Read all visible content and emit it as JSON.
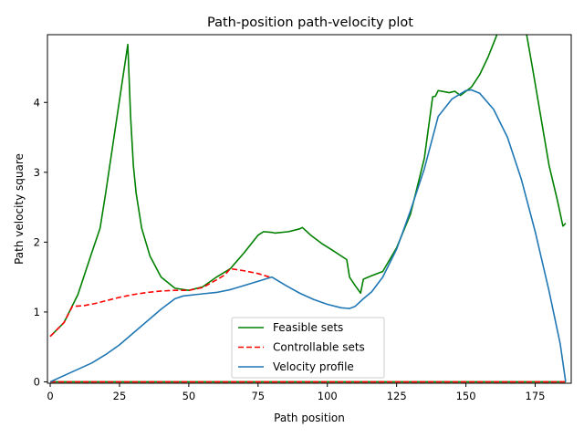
{
  "chart_data": {
    "type": "line",
    "title": "Path-position path-velocity plot",
    "xlabel": "Path position",
    "ylabel": "Path velocity square",
    "xlim": [
      -1,
      188
    ],
    "ylim": [
      -0.02,
      4.97
    ],
    "xticks": [
      0,
      25,
      50,
      75,
      100,
      125,
      150,
      175
    ],
    "xtick_labels": [
      "0",
      "25",
      "50",
      "75",
      "100",
      "125",
      "150",
      "175"
    ],
    "yticks": [
      0,
      1,
      2,
      3,
      4
    ],
    "ytick_labels": [
      "0",
      "1",
      "2",
      "3",
      "4"
    ],
    "grid": false,
    "legend_position": "bottom-center",
    "series": [
      {
        "name": "Feasible sets",
        "color": "#008000",
        "style": "solid",
        "points": [
          [
            0,
            0.65
          ],
          [
            5,
            0.85
          ],
          [
            10,
            1.25
          ],
          [
            15,
            1.85
          ],
          [
            18,
            2.2
          ],
          [
            20,
            2.7
          ],
          [
            23,
            3.5
          ],
          [
            26,
            4.3
          ],
          [
            28,
            4.83
          ],
          [
            29,
            3.8
          ],
          [
            30,
            3.1
          ],
          [
            31,
            2.7
          ],
          [
            33,
            2.2
          ],
          [
            36,
            1.8
          ],
          [
            40,
            1.5
          ],
          [
            45,
            1.34
          ],
          [
            50,
            1.31
          ],
          [
            55,
            1.36
          ],
          [
            60,
            1.5
          ],
          [
            65,
            1.62
          ],
          [
            70,
            1.85
          ],
          [
            75,
            2.1
          ],
          [
            77,
            2.15
          ],
          [
            80,
            2.14
          ],
          [
            81,
            2.13
          ],
          [
            86,
            2.15
          ],
          [
            90,
            2.19
          ],
          [
            91,
            2.21
          ],
          [
            94,
            2.1
          ],
          [
            98,
            1.98
          ],
          [
            102,
            1.88
          ],
          [
            107,
            1.75
          ],
          [
            108,
            1.5
          ],
          [
            110,
            1.38
          ],
          [
            112,
            1.27
          ],
          [
            113,
            1.47
          ],
          [
            116,
            1.52
          ],
          [
            120,
            1.58
          ],
          [
            125,
            1.92
          ],
          [
            130,
            2.4
          ],
          [
            135,
            3.2
          ],
          [
            138,
            4.08
          ],
          [
            139,
            4.09
          ],
          [
            140,
            4.17
          ],
          [
            144,
            4.14
          ],
          [
            146,
            4.16
          ],
          [
            148,
            4.1
          ],
          [
            152,
            4.22
          ],
          [
            155,
            4.4
          ],
          [
            158,
            4.65
          ],
          [
            161,
            4.95
          ],
          [
            163,
            5.3
          ],
          [
            170,
            5.3
          ],
          [
            172,
            4.95
          ],
          [
            174,
            4.5
          ],
          [
            177,
            3.8
          ],
          [
            180,
            3.1
          ],
          [
            183,
            2.6
          ],
          [
            185,
            2.23
          ],
          [
            186,
            2.27
          ]
        ]
      },
      {
        "name": "",
        "color": "#008000",
        "style": "solid",
        "points": [
          [
            0,
            0.0
          ],
          [
            186,
            0.0
          ]
        ]
      },
      {
        "name": "Controllable sets",
        "color": "#ff0000",
        "style": "dashed",
        "points": [
          [
            0,
            0.65
          ],
          [
            5,
            0.85
          ],
          [
            8,
            1.08
          ],
          [
            12,
            1.09
          ],
          [
            16,
            1.12
          ],
          [
            20,
            1.16
          ],
          [
            25,
            1.21
          ],
          [
            30,
            1.25
          ],
          [
            35,
            1.28
          ],
          [
            40,
            1.3
          ],
          [
            45,
            1.31
          ],
          [
            50,
            1.31
          ],
          [
            55,
            1.35
          ],
          [
            60,
            1.46
          ],
          [
            63,
            1.53
          ],
          [
            65,
            1.62
          ],
          [
            70,
            1.59
          ],
          [
            75,
            1.55
          ],
          [
            80,
            1.49
          ]
        ]
      },
      {
        "name": "",
        "color": "#ff0000",
        "style": "dashed",
        "points": [
          [
            0,
            0.0
          ],
          [
            186,
            0.0
          ]
        ]
      },
      {
        "name": "Velocity profile",
        "color": "#1f77b4",
        "style": "solid",
        "points": [
          [
            0,
            0.0
          ],
          [
            5,
            0.09
          ],
          [
            10,
            0.18
          ],
          [
            15,
            0.27
          ],
          [
            20,
            0.39
          ],
          [
            25,
            0.53
          ],
          [
            30,
            0.7
          ],
          [
            35,
            0.87
          ],
          [
            40,
            1.04
          ],
          [
            45,
            1.19
          ],
          [
            48,
            1.23
          ],
          [
            55,
            1.26
          ],
          [
            60,
            1.28
          ],
          [
            65,
            1.32
          ],
          [
            70,
            1.38
          ],
          [
            75,
            1.44
          ],
          [
            80,
            1.5
          ],
          [
            85,
            1.38
          ],
          [
            90,
            1.27
          ],
          [
            95,
            1.18
          ],
          [
            100,
            1.11
          ],
          [
            105,
            1.06
          ],
          [
            108,
            1.05
          ],
          [
            110,
            1.08
          ],
          [
            113,
            1.19
          ],
          [
            116,
            1.29
          ],
          [
            120,
            1.5
          ],
          [
            125,
            1.9
          ],
          [
            130,
            2.45
          ],
          [
            135,
            3.05
          ],
          [
            140,
            3.8
          ],
          [
            145,
            4.05
          ],
          [
            150,
            4.17
          ],
          [
            152,
            4.18
          ],
          [
            155,
            4.13
          ],
          [
            160,
            3.9
          ],
          [
            165,
            3.5
          ],
          [
            170,
            2.9
          ],
          [
            175,
            2.15
          ],
          [
            180,
            1.3
          ],
          [
            184,
            0.55
          ],
          [
            186,
            0.0
          ]
        ]
      }
    ]
  }
}
